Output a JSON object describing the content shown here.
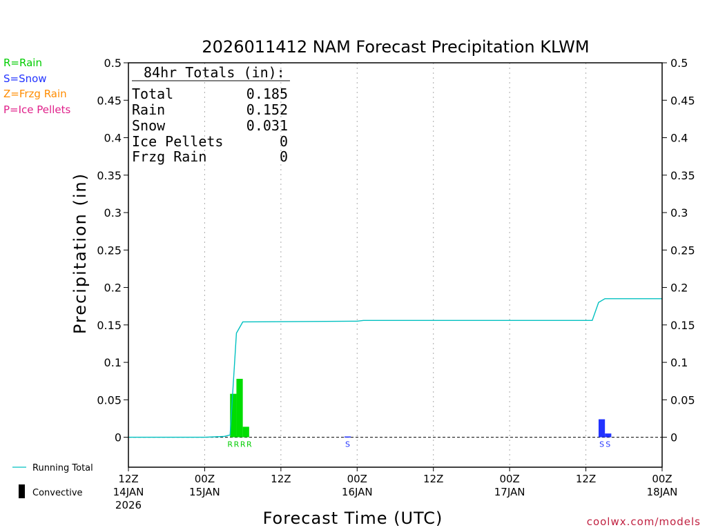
{
  "chart_data": {
    "type": "bar",
    "title": "2026011412 NAM Forecast Precipitation KLWM",
    "xlabel": "Forecast Time (UTC)",
    "ylabel": "Precipitation (in)",
    "ylim": [
      -0.04,
      0.5
    ],
    "xlim": [
      0,
      84
    ],
    "y_ticks": [
      0,
      0.05,
      0.1,
      0.15,
      0.2,
      0.25,
      0.3,
      0.35,
      0.4,
      0.45,
      0.5
    ],
    "y_tick_labels": [
      "0",
      "0.05",
      "0.1",
      "0.15",
      "0.2",
      "0.25",
      "0.3",
      "0.35",
      "0.4",
      "0.45",
      "0.5"
    ],
    "x_ticks": [
      {
        "hour": 0,
        "line1": "12Z",
        "line2": "14JAN",
        "line3": "2026"
      },
      {
        "hour": 12,
        "line1": "00Z",
        "line2": "15JAN",
        "line3": ""
      },
      {
        "hour": 24,
        "line1": "12Z",
        "line2": "",
        "line3": ""
      },
      {
        "hour": 36,
        "line1": "00Z",
        "line2": "16JAN",
        "line3": ""
      },
      {
        "hour": 48,
        "line1": "12Z",
        "line2": "",
        "line3": ""
      },
      {
        "hour": 60,
        "line1": "00Z",
        "line2": "17JAN",
        "line3": ""
      },
      {
        "hour": 72,
        "line1": "12Z",
        "line2": "",
        "line3": ""
      },
      {
        "hour": 84,
        "line1": "00Z",
        "line2": "18JAN",
        "line3": ""
      }
    ],
    "grid": "vertical dotted at 12h ticks",
    "bars": [
      {
        "name": "Rain",
        "color": "#00dd00",
        "width_hours": 1,
        "data": [
          {
            "hour": 16.5,
            "value": 0.058
          },
          {
            "hour": 17.5,
            "value": 0.078
          },
          {
            "hour": 18.5,
            "value": 0.014
          }
        ]
      },
      {
        "name": "Snow",
        "color": "#2233ff",
        "width_hours": 1,
        "data": [
          {
            "hour": 34.5,
            "value": 0.001
          },
          {
            "hour": 74.5,
            "value": 0.024
          },
          {
            "hour": 75.5,
            "value": 0.005
          }
        ]
      }
    ],
    "series": [
      {
        "name": "Running Total",
        "type": "line",
        "color": "#00c0c0",
        "x": [
          0,
          12,
          15,
          16,
          17,
          18,
          36,
          37,
          38,
          73,
          74,
          75,
          84
        ],
        "y": [
          0,
          0,
          0.001,
          0.003,
          0.139,
          0.154,
          0.155,
          0.156,
          0.156,
          0.156,
          0.18,
          0.185,
          0.185
        ]
      }
    ],
    "precip_type_markers": [
      {
        "hour": 16,
        "label": "R",
        "color": "#00cc00"
      },
      {
        "hour": 17,
        "label": "R",
        "color": "#00cc00"
      },
      {
        "hour": 18,
        "label": "R",
        "color": "#00cc00"
      },
      {
        "hour": 19,
        "label": "R",
        "color": "#00cc00"
      },
      {
        "hour": 34.5,
        "label": "S",
        "color": "#2233ff"
      },
      {
        "hour": 74.5,
        "label": "S",
        "color": "#2233ff"
      },
      {
        "hour": 75.5,
        "label": "S",
        "color": "#2233ff"
      }
    ],
    "totals_box": {
      "header": "84hr Totals (in):",
      "rows": [
        {
          "label": "Total",
          "value": "0.185"
        },
        {
          "label": "Rain",
          "value": "0.152"
        },
        {
          "label": "Snow",
          "value": "0.031"
        },
        {
          "label": "Ice Pellets",
          "value": "0"
        },
        {
          "label": "Frzg Rain",
          "value": "0"
        }
      ]
    },
    "type_legend": [
      {
        "text": "R=Rain",
        "color": "#00cc00"
      },
      {
        "text": "S=Snow",
        "color": "#2233ff"
      },
      {
        "text": "Z=Frzg Rain",
        "color": "#ff8c00"
      },
      {
        "text": "P=Ice Pellets",
        "color": "#e0208a"
      }
    ],
    "series_legend": [
      {
        "text": "Running Total",
        "color": "#00c0c0",
        "symbol": "line"
      },
      {
        "text": "Convective",
        "color": "#000000",
        "symbol": "bar"
      }
    ],
    "credit": "coolwx.com/models",
    "credit_color": "#c02040"
  }
}
